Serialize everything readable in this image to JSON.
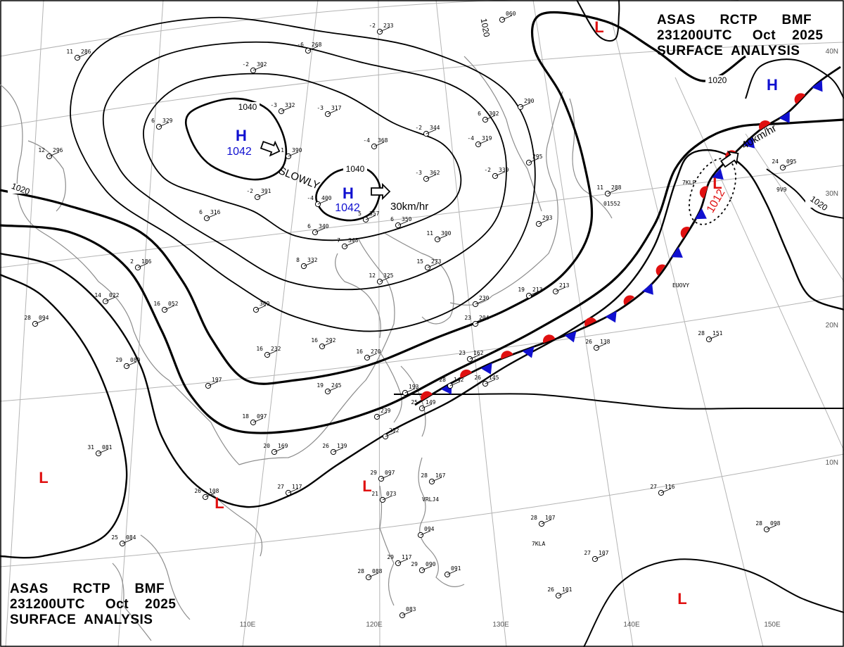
{
  "header": {
    "line1": "ASAS      RCTP      BMF",
    "line2": "231200UTC     Oct    2025",
    "line3": "SURFACE  ANALYSIS"
  },
  "colors": {
    "high": "#1010d0",
    "low": "#e01010",
    "cold_front": "#1010d0",
    "warm_front": "#e01010",
    "isobar": "#000000",
    "coast": "#8c8c8c",
    "grid": "#b4b4b4"
  },
  "longitude_labels": [
    "110E",
    "120E",
    "130E",
    "140E",
    "150E"
  ],
  "latitude_labels": [
    "10N",
    "20N",
    "30N",
    "40N"
  ],
  "isobar_labels": [
    "1020",
    "1040",
    "1040",
    "1020",
    "1020",
    "1020"
  ],
  "pressure_centers": [
    {
      "type": "H",
      "value": "1042"
    },
    {
      "type": "H",
      "value": "1042"
    },
    {
      "type": "H",
      "value": ""
    },
    {
      "type": "L",
      "value": "1012"
    },
    {
      "type": "L",
      "value": ""
    },
    {
      "type": "L",
      "value": ""
    },
    {
      "type": "L",
      "value": ""
    },
    {
      "type": "L",
      "value": ""
    },
    {
      "type": "L",
      "value": ""
    }
  ],
  "motion_labels": [
    "SLOWLY",
    "30km/hr",
    "40km/hr"
  ],
  "stations": [
    {
      "t": "-2",
      "p": "233"
    },
    {
      "t": "-6",
      "p": "268"
    },
    {
      "t": "-2",
      "p": "302"
    },
    {
      "t": "-3",
      "p": "332"
    },
    {
      "t": "-3",
      "p": "317"
    },
    {
      "t": "11",
      "p": "286"
    },
    {
      "t": "6",
      "p": "329"
    },
    {
      "t": "12",
      "p": "296"
    },
    {
      "t": "-1",
      "p": "390"
    },
    {
      "t": "-4",
      "p": "368"
    },
    {
      "t": "-2",
      "p": "344"
    },
    {
      "t": "-2",
      "p": "391"
    },
    {
      "t": "-4",
      "p": "400"
    },
    {
      "t": "6",
      "p": "302"
    },
    {
      "t": "-4",
      "p": "319"
    },
    {
      "t": "6",
      "p": "340"
    },
    {
      "t": "7",
      "p": "348"
    },
    {
      "t": "5",
      "p": "357"
    },
    {
      "t": "6",
      "p": "350"
    },
    {
      "t": "-3",
      "p": "362"
    },
    {
      "t": "-2",
      "p": "339"
    },
    {
      "t": "",
      "p": "295"
    },
    {
      "t": "11",
      "p": "288"
    },
    {
      "t": "",
      "p": "290"
    },
    {
      "t": "6",
      "p": "316"
    },
    {
      "t": "8",
      "p": "332"
    },
    {
      "t": "11",
      "p": "300"
    },
    {
      "t": "15",
      "p": "273"
    },
    {
      "t": "12",
      "p": "325"
    },
    {
      "t": "2",
      "p": "186"
    },
    {
      "t": "14",
      "p": "022"
    },
    {
      "t": "16",
      "p": "052"
    },
    {
      "t": "28",
      "p": "094"
    },
    {
      "t": "29",
      "p": "089"
    },
    {
      "t": "",
      "p": "309"
    },
    {
      "t": "16",
      "p": "292"
    },
    {
      "t": "16",
      "p": "270"
    },
    {
      "t": "16",
      "p": "232"
    },
    {
      "t": "",
      "p": "197"
    },
    {
      "t": "19",
      "p": "245"
    },
    {
      "t": "",
      "p": "193"
    },
    {
      "t": "",
      "p": "239"
    },
    {
      "t": "",
      "p": "232"
    },
    {
      "t": "18",
      "p": "097"
    },
    {
      "t": "20",
      "p": "169"
    },
    {
      "t": "26",
      "p": "139"
    },
    {
      "t": "27",
      "p": "117"
    },
    {
      "t": "26",
      "p": "108"
    },
    {
      "t": "31",
      "p": "081"
    },
    {
      "t": "25",
      "p": "084"
    },
    {
      "t": "29",
      "p": "097"
    },
    {
      "t": "21",
      "p": "073"
    },
    {
      "t": "28",
      "p": "167"
    },
    {
      "t": "",
      "p": "094"
    },
    {
      "t": "28",
      "p": "107"
    },
    {
      "t": "29",
      "p": "117"
    },
    {
      "t": "29",
      "p": "090"
    },
    {
      "t": "28",
      "p": "088"
    },
    {
      "t": "",
      "p": "091"
    },
    {
      "t": "",
      "p": "083"
    },
    {
      "t": "26",
      "p": "101"
    },
    {
      "t": "27",
      "p": "107"
    },
    {
      "t": "27",
      "p": "116"
    },
    {
      "t": "28",
      "p": "098"
    },
    {
      "t": "28",
      "p": "151"
    },
    {
      "t": "26",
      "p": "138"
    },
    {
      "t": "23",
      "p": "162"
    },
    {
      "t": "26",
      "p": "145"
    },
    {
      "t": "28",
      "p": "142"
    },
    {
      "t": "25",
      "p": "149"
    },
    {
      "t": "",
      "p": "213"
    },
    {
      "t": "24",
      "p": "095"
    },
    {
      "t": "19",
      "p": "213"
    },
    {
      "t": "",
      "p": "230"
    },
    {
      "t": "23",
      "p": "204"
    },
    {
      "t": "",
      "p": "293"
    },
    {
      "t": "",
      "p": "060"
    }
  ],
  "ship_ids": [
    "VRLJ4",
    "7KLA",
    "EUOVY",
    "7KLP",
    "9V9",
    "01552"
  ]
}
